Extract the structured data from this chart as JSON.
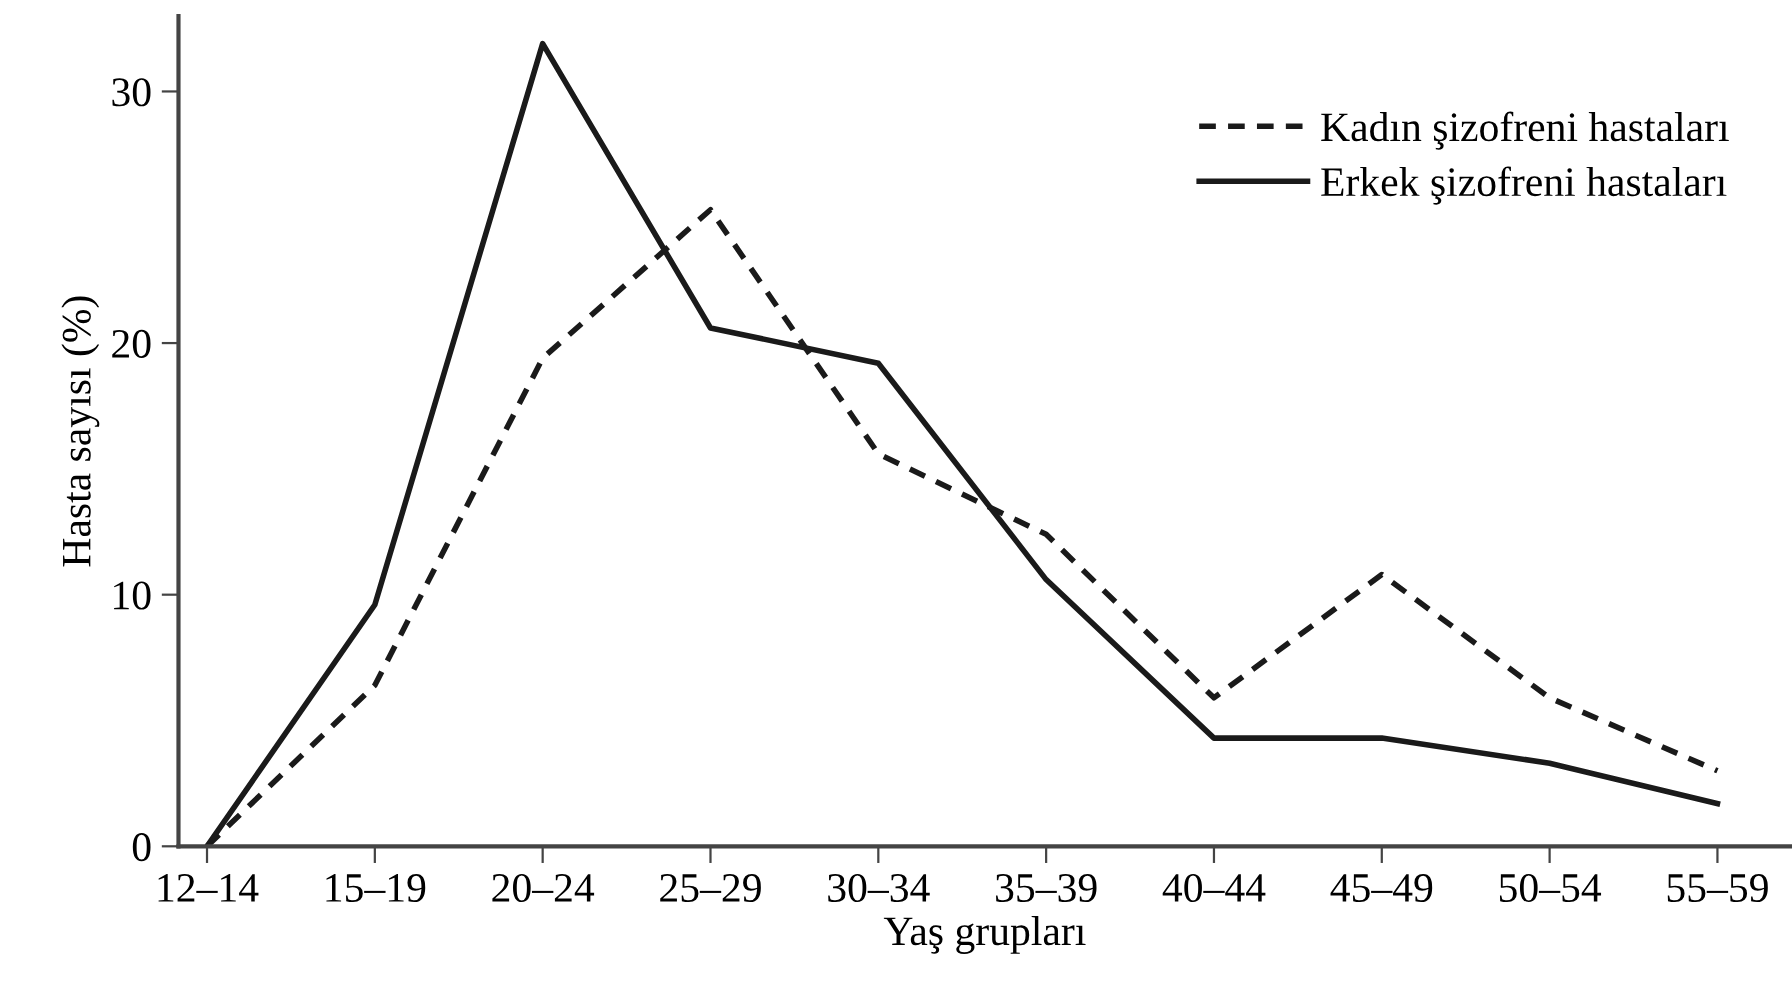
{
  "chart_data": {
    "type": "line",
    "xlabel": "Yaş grupları",
    "ylabel": "Hasta sayısı (%)",
    "categories": [
      "12–14",
      "15–19",
      "20–24",
      "25–29",
      "30–34",
      "35–39",
      "40–44",
      "45–49",
      "50–54",
      "55–59"
    ],
    "series": [
      {
        "name": "Kadın şizofreni hastaları",
        "color": "#1a1a1a",
        "line_style": "dashed",
        "values": [
          0,
          6.4,
          19.4,
          25.3,
          15.6,
          12.4,
          5.9,
          10.8,
          5.9,
          3.0
        ]
      },
      {
        "name": "Erkek şizofreni hastaları",
        "color": "#1a1a1a",
        "line_style": "solid",
        "values": [
          0,
          9.6,
          31.9,
          20.6,
          19.2,
          10.6,
          4.3,
          4.3,
          3.3,
          1.7
        ]
      }
    ],
    "ylim": [
      0,
      33
    ],
    "yticks": [
      0,
      10,
      20,
      30
    ],
    "grid": false,
    "legend": "top right",
    "marker": "none"
  }
}
